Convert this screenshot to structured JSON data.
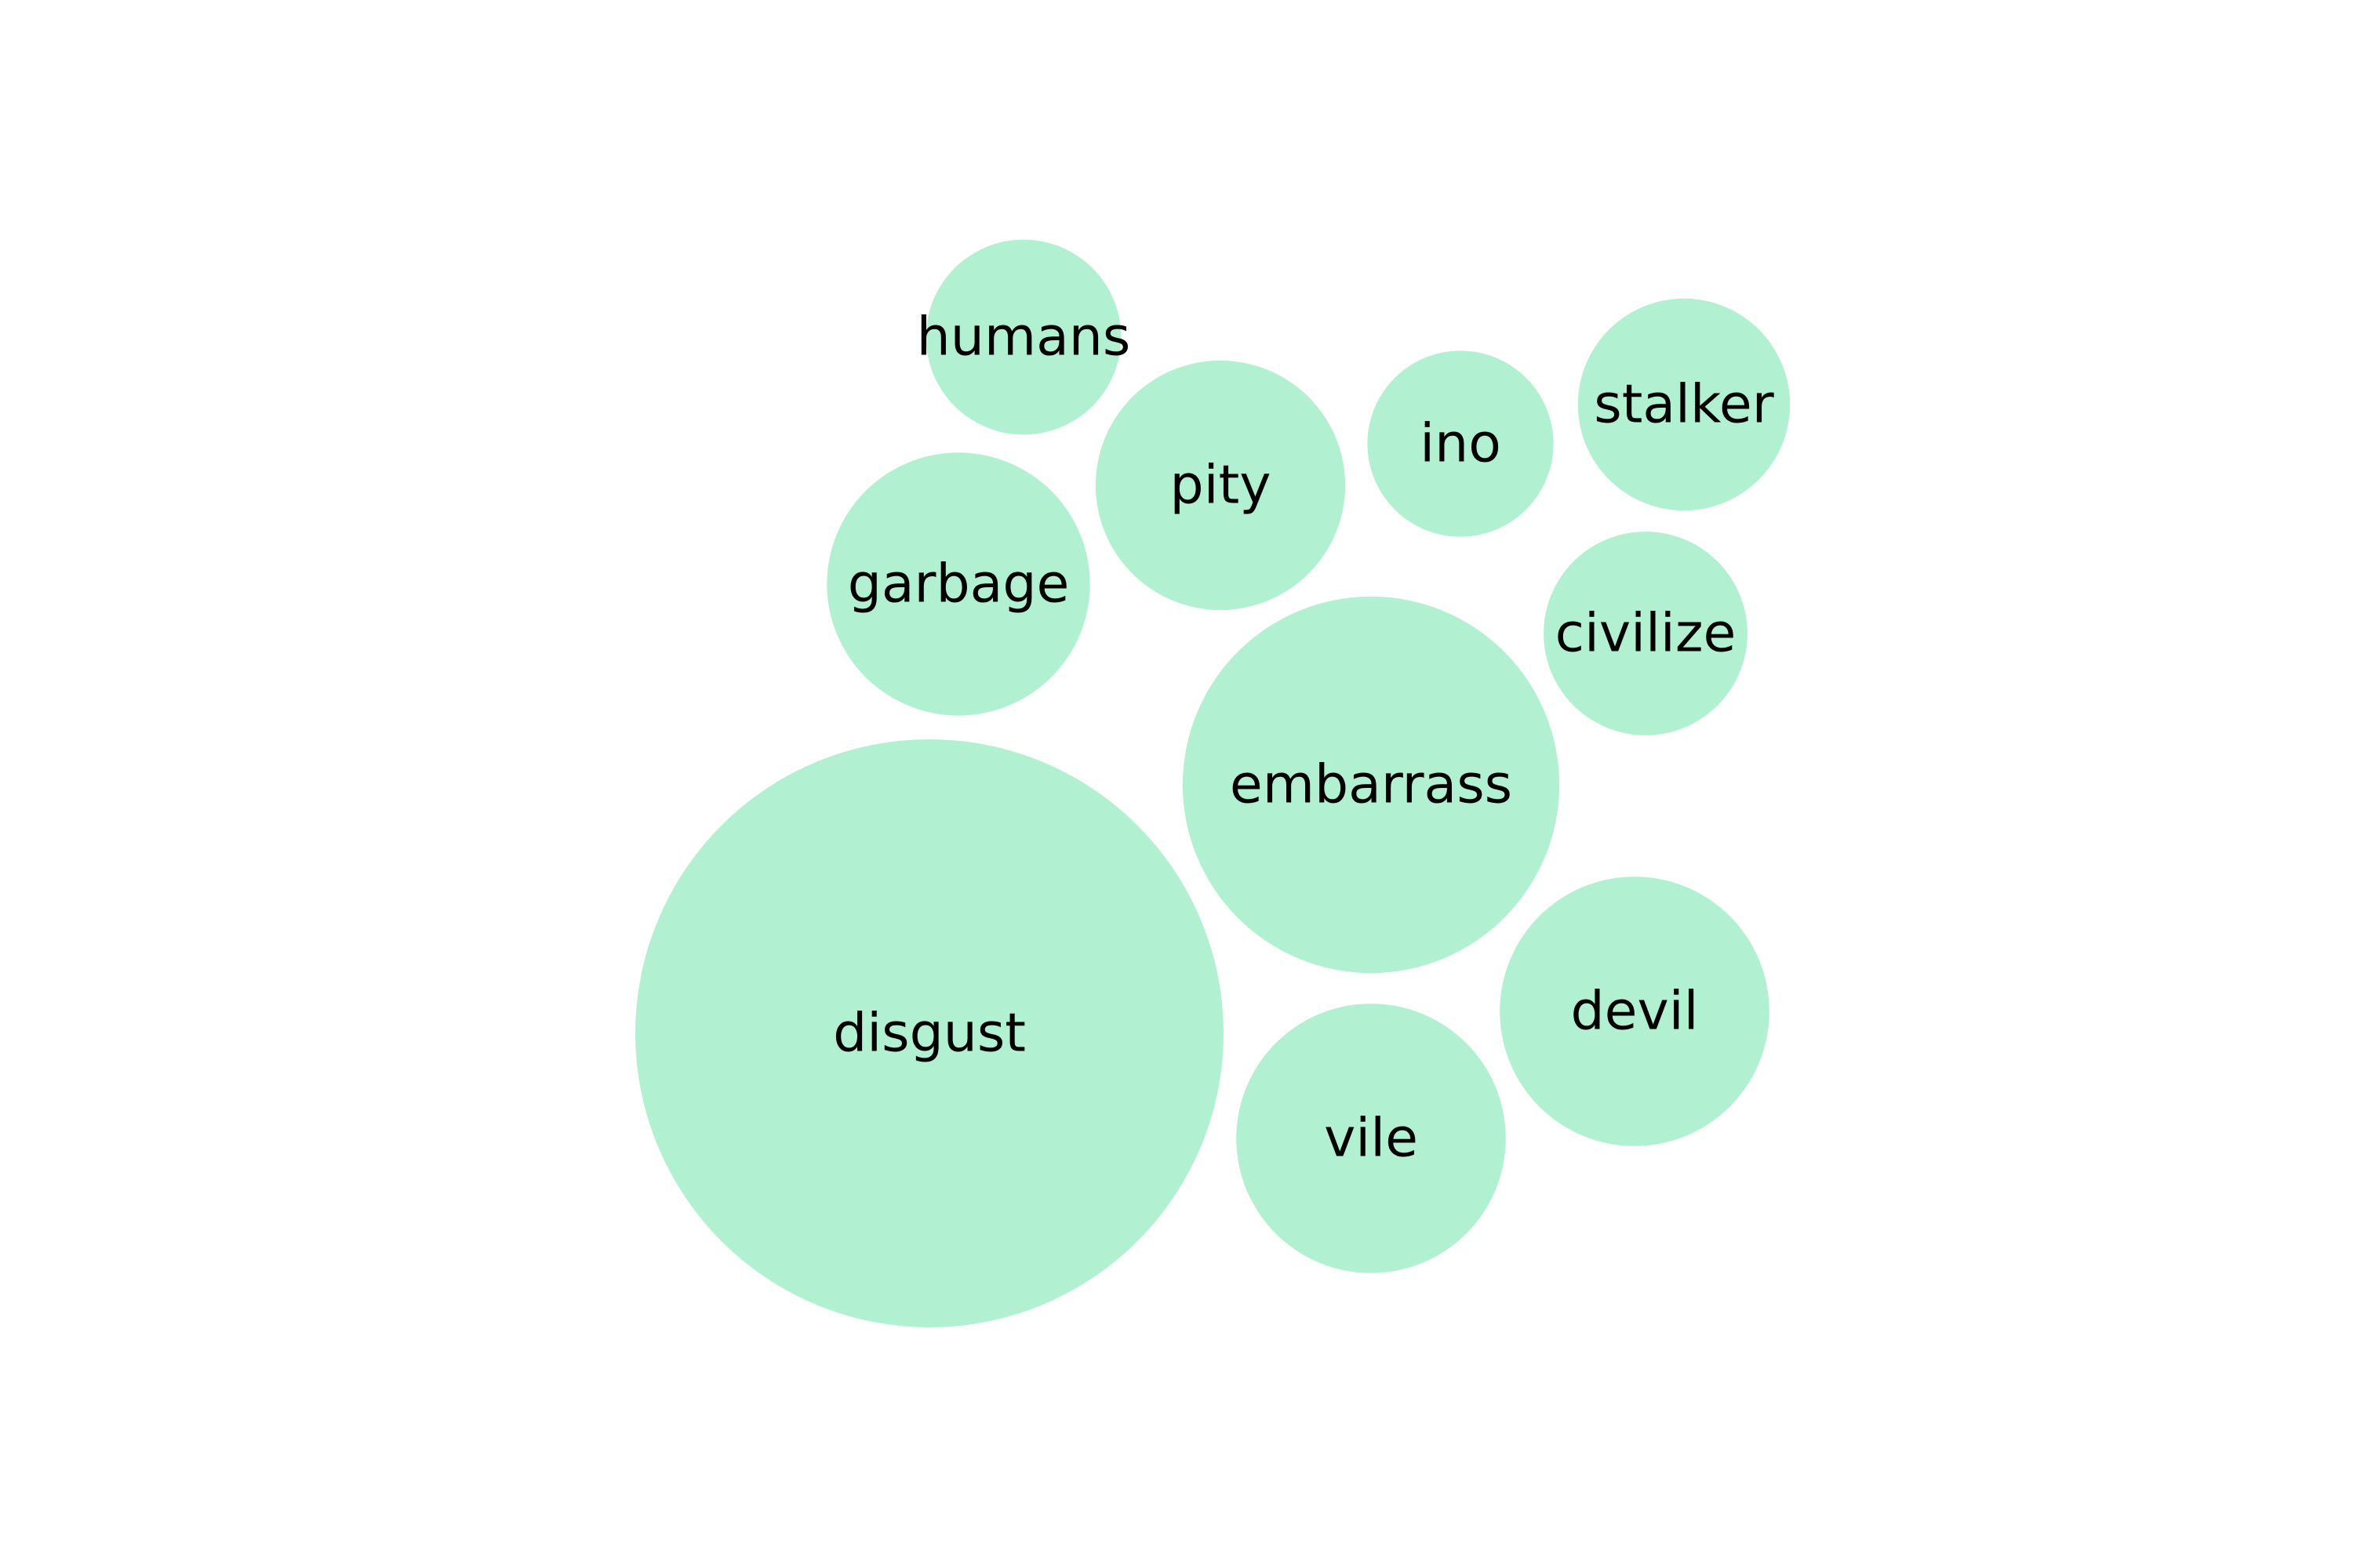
{
  "chart_data": {
    "type": "bubble",
    "title": "",
    "bubble_color": "#b1f0d0",
    "label_color": "#000000",
    "legend": "none",
    "grid": false,
    "axes": false,
    "items": [
      {
        "label": "disgust",
        "value": 100
      },
      {
        "label": "embarrass",
        "value": 41
      },
      {
        "label": "devil",
        "value": 21
      },
      {
        "label": "vile",
        "value": 21
      },
      {
        "label": "garbage",
        "value": 20
      },
      {
        "label": "pity",
        "value": 18
      },
      {
        "label": "stalker",
        "value": 13
      },
      {
        "label": "civilize",
        "value": 12
      },
      {
        "label": "humans",
        "value": 11
      },
      {
        "label": "ino",
        "value": 10
      }
    ]
  }
}
